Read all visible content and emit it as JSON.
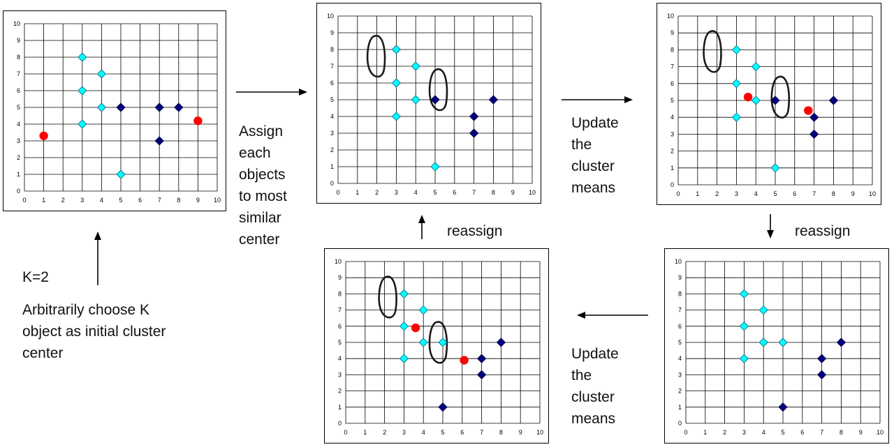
{
  "axis_ticks": [
    "0",
    "1",
    "2",
    "3",
    "4",
    "5",
    "6",
    "7",
    "8",
    "9",
    "10"
  ],
  "labels": {
    "k_value": "K=2",
    "initial_lines": [
      "Arbitrarily choose K",
      "object as initial cluster",
      "center"
    ],
    "assign_lines": [
      "Assign",
      "each",
      "objects",
      "to most",
      "similar",
      "center"
    ],
    "update_top_lines": [
      "Update",
      "the",
      "cluster",
      "means"
    ],
    "update_bottom_lines": [
      "Update",
      "the",
      "cluster",
      "means"
    ],
    "reassign_left": "reassign",
    "reassign_right": "reassign"
  },
  "colors": {
    "light": "#00FFFF",
    "dark": "#000080",
    "center": "#FF0000",
    "outline": "#1a1a1a"
  },
  "chart_data": [
    {
      "type": "scatter",
      "panel": "initial",
      "xlim": [
        0,
        10
      ],
      "ylim": [
        0,
        10
      ],
      "light_points": [
        [
          3,
          8
        ],
        [
          4,
          7
        ],
        [
          3,
          6
        ],
        [
          4,
          5
        ],
        [
          3,
          4
        ],
        [
          5,
          1
        ]
      ],
      "dark_points": [
        [
          5,
          5
        ],
        [
          7,
          5
        ],
        [
          8,
          5
        ],
        [
          7,
          3
        ]
      ],
      "centers": [
        [
          1,
          3.3
        ],
        [
          9,
          4.2
        ]
      ],
      "blobs": []
    },
    {
      "type": "scatter",
      "panel": "assign",
      "xlim": [
        0,
        10
      ],
      "ylim": [
        0,
        10
      ],
      "light_points": [
        [
          3,
          8
        ],
        [
          4,
          7
        ],
        [
          3,
          6
        ],
        [
          4,
          5
        ],
        [
          3,
          4
        ],
        [
          5,
          1
        ]
      ],
      "dark_points": [
        [
          5,
          5
        ],
        [
          7,
          4
        ],
        [
          7,
          3
        ],
        [
          8,
          5
        ]
      ],
      "centers": [],
      "blobs": [
        [
          2,
          7.5
        ],
        [
          5.2,
          5.5
        ]
      ]
    },
    {
      "type": "scatter",
      "panel": "update1",
      "xlim": [
        0,
        10
      ],
      "ylim": [
        0,
        10
      ],
      "light_points": [
        [
          3,
          8
        ],
        [
          4,
          7
        ],
        [
          3,
          6
        ],
        [
          4,
          5
        ],
        [
          3,
          4
        ],
        [
          5,
          1
        ]
      ],
      "dark_points": [
        [
          5,
          5
        ],
        [
          7,
          4
        ],
        [
          7,
          3
        ],
        [
          8,
          5
        ]
      ],
      "centers": [
        [
          3.6,
          5.2
        ],
        [
          6.7,
          4.4
        ]
      ],
      "blobs": [
        [
          1.8,
          7.8
        ],
        [
          5.3,
          5.1
        ]
      ]
    },
    {
      "type": "scatter",
      "panel": "reassign",
      "xlim": [
        0,
        10
      ],
      "ylim": [
        0,
        10
      ],
      "light_points": [
        [
          3,
          8
        ],
        [
          4,
          7
        ],
        [
          3,
          6
        ],
        [
          4,
          5
        ],
        [
          3,
          4
        ],
        [
          5,
          5
        ]
      ],
      "dark_points": [
        [
          5,
          1
        ],
        [
          7,
          4
        ],
        [
          7,
          3
        ],
        [
          8,
          5
        ]
      ],
      "centers": [],
      "blobs": []
    },
    {
      "type": "scatter",
      "panel": "update2",
      "xlim": [
        0,
        10
      ],
      "ylim": [
        0,
        10
      ],
      "light_points": [
        [
          3,
          8
        ],
        [
          4,
          7
        ],
        [
          3,
          6
        ],
        [
          4,
          5
        ],
        [
          3,
          4
        ],
        [
          5,
          5
        ]
      ],
      "dark_points": [
        [
          5,
          1
        ],
        [
          7,
          4
        ],
        [
          7,
          3
        ],
        [
          8,
          5
        ]
      ],
      "centers": [
        [
          3.6,
          5.9
        ],
        [
          6.1,
          3.9
        ]
      ],
      "blobs": [
        [
          2.2,
          7.7
        ],
        [
          4.8,
          4.9
        ]
      ]
    }
  ]
}
